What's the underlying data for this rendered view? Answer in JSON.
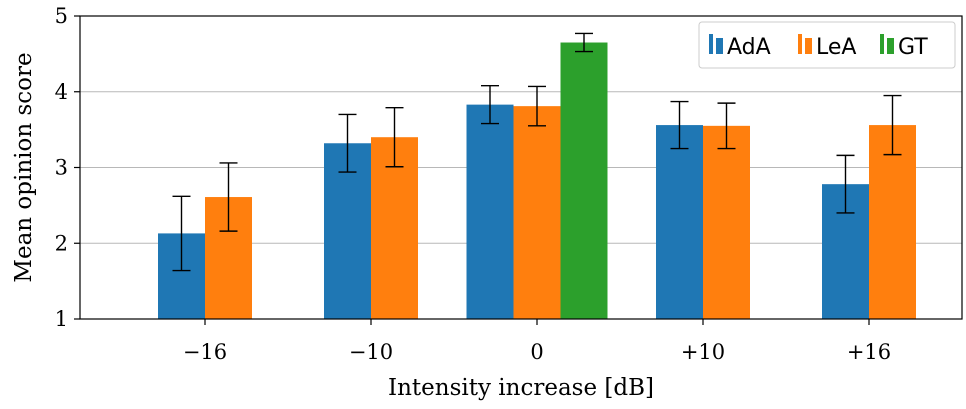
{
  "chart_data": {
    "type": "bar",
    "categories": [
      "−16",
      "−10",
      "0",
      "+10",
      "+16"
    ],
    "xlabel": "Intensity increase [dB]",
    "ylabel": "Mean opinion score",
    "ylim": [
      1,
      5
    ],
    "yticks": [
      1,
      2,
      3,
      4,
      5
    ],
    "grid": "horizontal",
    "legend_position": "top-right",
    "colors": {
      "AdA": "#1f77b4",
      "LeA": "#ff7f0e",
      "GT": "#2ca02c"
    },
    "series": [
      {
        "name": "AdA",
        "values": [
          2.13,
          3.32,
          3.83,
          3.56,
          2.78
        ],
        "errors": [
          0.49,
          0.38,
          0.25,
          0.31,
          0.38
        ]
      },
      {
        "name": "LeA",
        "values": [
          2.61,
          3.4,
          3.81,
          3.55,
          3.56
        ],
        "errors": [
          0.45,
          0.39,
          0.26,
          0.3,
          0.39
        ]
      },
      {
        "name": "GT",
        "values": [
          null,
          null,
          4.65,
          null,
          null
        ],
        "errors": [
          null,
          null,
          0.12,
          null,
          null
        ]
      }
    ]
  }
}
